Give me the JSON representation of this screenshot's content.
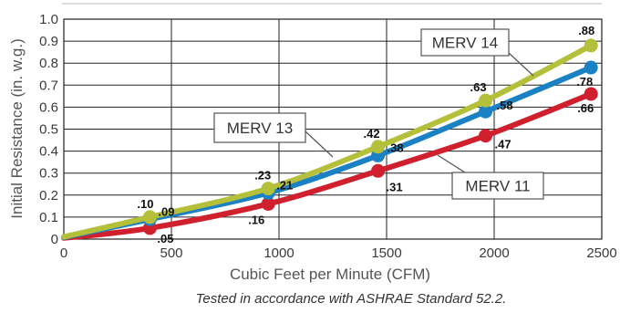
{
  "chart_data": {
    "type": "line",
    "xlabel": "Cubic Feet per Minute (CFM)",
    "ylabel": "Initial Resistance (in. w.g.)",
    "footnote": "Tested in accordance with ASHRAE Standard 52.2.",
    "xlim": [
      0,
      2500
    ],
    "ylim": [
      0,
      1.0
    ],
    "x_ticks": [
      "0",
      "500",
      "1000",
      "1500",
      "2000",
      "2500"
    ],
    "y_ticks": [
      "0",
      "0.1",
      "0.2",
      "0.3",
      "0.4",
      "0.5",
      "0.6",
      "0.7",
      "0.8",
      "0.9",
      "1.0"
    ],
    "grid": true,
    "x": [
      400,
      950,
      1460,
      1960,
      2450
    ],
    "series": [
      {
        "name": "MERV 14",
        "color": "#b4bf3a",
        "start": [
          0,
          0.01
        ],
        "values": [
          0.1,
          0.23,
          0.42,
          0.63,
          0.88
        ],
        "labels": [
          ".10",
          ".23",
          ".42",
          ".63",
          ".88"
        ]
      },
      {
        "name": "MERV 13",
        "color": "#1a82c4",
        "start": [
          0,
          0.008
        ],
        "values": [
          0.09,
          0.21,
          0.38,
          0.58,
          0.78
        ],
        "labels": [
          ".09",
          ".21",
          ".38",
          ".58",
          ".78"
        ]
      },
      {
        "name": "MERV 11",
        "color": "#d0202e",
        "start": [
          0,
          0.005
        ],
        "values": [
          0.05,
          0.16,
          0.31,
          0.47,
          0.66
        ],
        "labels": [
          ".05",
          ".16",
          ".31",
          ".47",
          ".66"
        ]
      }
    ]
  }
}
